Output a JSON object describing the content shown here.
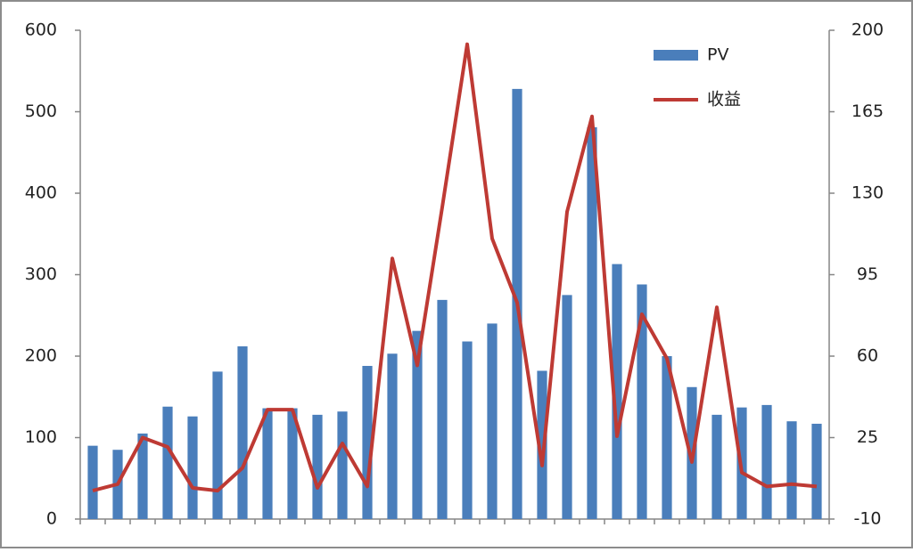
{
  "chart_data": {
    "type": "bar-line",
    "categories": [
      null,
      null,
      null,
      null,
      null,
      null,
      null,
      null,
      null,
      null,
      null,
      null,
      null,
      null,
      null,
      null,
      null,
      null,
      null,
      null,
      null,
      null,
      null,
      null,
      null,
      null,
      null,
      null,
      null,
      null
    ],
    "series": [
      {
        "name": "PV",
        "type": "bar",
        "color": "#4a7ebb",
        "axis": "y",
        "values": [
          90,
          85,
          105,
          138,
          126,
          181,
          212,
          136,
          136,
          128,
          132,
          188,
          203,
          231,
          269,
          218,
          240,
          528,
          182,
          275,
          481,
          313,
          288,
          200,
          162,
          128,
          137,
          140,
          120,
          117
        ]
      },
      {
        "name": "收益",
        "type": "line",
        "color": "#be3a34",
        "axis": "y2",
        "values": [
          2.2,
          5,
          25,
          21,
          3.4,
          2.2,
          12,
          37,
          37,
          3.4,
          22.5,
          4,
          102,
          56,
          124,
          194,
          110.5,
          83,
          13,
          122,
          163,
          25.6,
          78,
          59,
          14.5,
          81,
          10,
          4,
          5,
          4
        ]
      }
    ],
    "ylim": [
      0,
      600
    ],
    "yticks": [
      0,
      100,
      200,
      300,
      400,
      500,
      600
    ],
    "y2lim": [
      -10,
      200
    ],
    "y2ticks": [
      -10,
      25,
      60,
      95,
      130,
      165,
      200
    ],
    "grid": false,
    "legend": "top-right"
  }
}
